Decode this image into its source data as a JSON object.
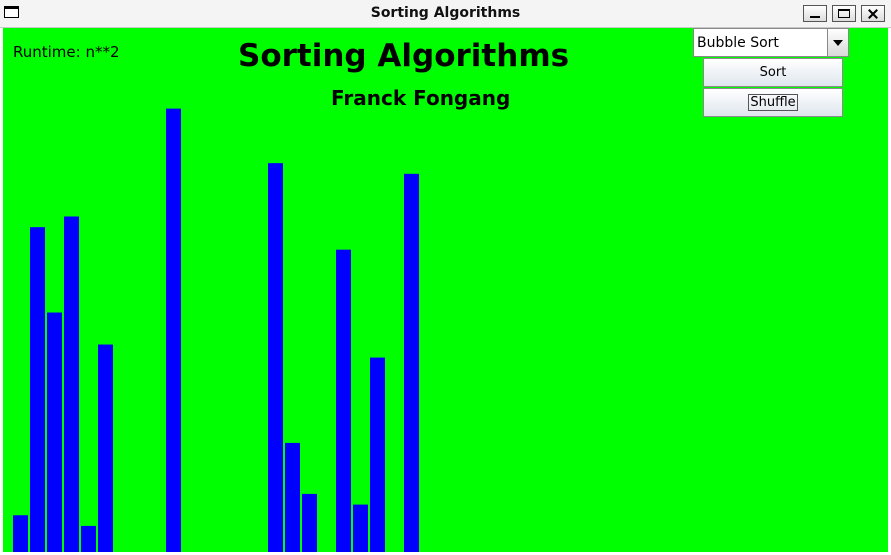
{
  "window": {
    "title": "Sorting Algorithms"
  },
  "panel": {
    "runtime": "Runtime: n**2",
    "heading": "Sorting Algorithms",
    "author": "Franck Fongang"
  },
  "controls": {
    "algorithm_selected": "Bubble Sort",
    "sort_label": "Sort",
    "shuffle_label": "Shuffle"
  },
  "colors": {
    "background": "#00ff00",
    "bar": "#0000ff"
  },
  "chart_data": {
    "type": "bar",
    "values": [
      31,
      274,
      202,
      283,
      22,
      175,
      0,
      0,
      0,
      374,
      0,
      0,
      0,
      0,
      0,
      328,
      92,
      49,
      0,
      255,
      40,
      164,
      0,
      319,
      0,
      0,
      0,
      0,
      0,
      0,
      0,
      0,
      0,
      0,
      0,
      0,
      0,
      0,
      0,
      0,
      0,
      0,
      0,
      0,
      0,
      0,
      0,
      0,
      0,
      0,
      0,
      0,
      0,
      0,
      0,
      0,
      0,
      0,
      0,
      0,
      0,
      0,
      0,
      0,
      0,
      0,
      0,
      0,
      0,
      0,
      0,
      0,
      0,
      0,
      0,
      0,
      0,
      0,
      0,
      0,
      0,
      0,
      0,
      0,
      0,
      0,
      0,
      0,
      0,
      0,
      0,
      0,
      0,
      0,
      0,
      0,
      0,
      0,
      0,
      0
    ],
    "ylim": [
      0,
      400
    ]
  }
}
